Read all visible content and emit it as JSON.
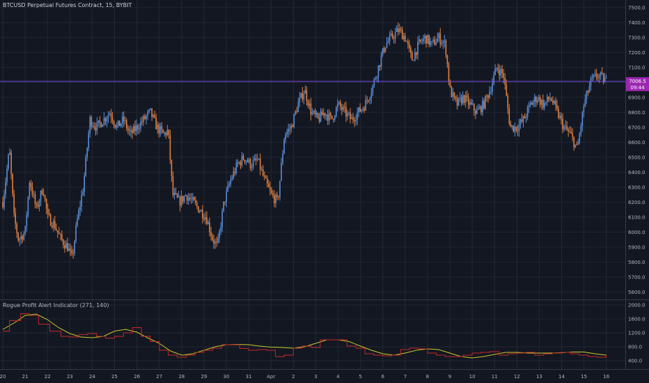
{
  "chart_data": [
    {
      "type": "candlestick",
      "title": "BTCUSD Perpetual Futures Contract, 15, BYBIT",
      "ylim": [
        5550,
        7550
      ],
      "y_ticks": [
        5600,
        5700,
        5800,
        5900,
        6000,
        6100,
        6200,
        6300,
        6400,
        6500,
        6600,
        6700,
        6800,
        6900,
        7000,
        7100,
        7200,
        7300,
        7400,
        7500
      ],
      "price_line": {
        "value": 7006.5,
        "label": "7006.5",
        "countdown": "09:44"
      },
      "x_ticks": [
        "20",
        "21",
        "22",
        "23",
        "24",
        "25",
        "26",
        "27",
        "28",
        "29",
        "30",
        "31",
        "Apr",
        "2",
        "3",
        "4",
        "5",
        "6",
        "7",
        "8",
        "9",
        "10",
        "11",
        "12",
        "13",
        "14",
        "15",
        "16"
      ],
      "x_tick_index": [
        0,
        1,
        2,
        3,
        4,
        5,
        6,
        7,
        8,
        9,
        10,
        11,
        12,
        13,
        14,
        15,
        16,
        17,
        18,
        19,
        20,
        21,
        22,
        23,
        24,
        25,
        26,
        27
      ],
      "closes": [
        [
          0,
          6200
        ],
        [
          0.3,
          6550
        ],
        [
          0.5,
          6100
        ],
        [
          0.7,
          5950
        ],
        [
          1.0,
          6000
        ],
        [
          1.2,
          6350
        ],
        [
          1.5,
          6150
        ],
        [
          1.8,
          6300
        ],
        [
          2.0,
          6100
        ],
        [
          2.3,
          6050
        ],
        [
          2.6,
          5950
        ],
        [
          2.9,
          5900
        ],
        [
          3.1,
          5820
        ],
        [
          3.3,
          6050
        ],
        [
          3.6,
          6300
        ],
        [
          3.9,
          6750
        ],
        [
          4.2,
          6700
        ],
        [
          4.5,
          6750
        ],
        [
          4.8,
          6800
        ],
        [
          5.1,
          6700
        ],
        [
          5.4,
          6750
        ],
        [
          5.7,
          6650
        ],
        [
          6.0,
          6700
        ],
        [
          6.3,
          6750
        ],
        [
          6.6,
          6800
        ],
        [
          6.9,
          6700
        ],
        [
          7.2,
          6650
        ],
        [
          7.4,
          6680
        ],
        [
          7.6,
          6250
        ],
        [
          7.9,
          6200
        ],
        [
          8.2,
          6250
        ],
        [
          8.5,
          6200
        ],
        [
          8.8,
          6150
        ],
        [
          9.1,
          6100
        ],
        [
          9.4,
          5950
        ],
        [
          9.6,
          5900
        ],
        [
          9.9,
          6200
        ],
        [
          10.2,
          6350
        ],
        [
          10.5,
          6450
        ],
        [
          10.8,
          6500
        ],
        [
          11.1,
          6450
        ],
        [
          11.4,
          6480
        ],
        [
          11.7,
          6350
        ],
        [
          12.0,
          6250
        ],
        [
          12.3,
          6200
        ],
        [
          12.6,
          6650
        ],
        [
          12.9,
          6700
        ],
        [
          13.2,
          6850
        ],
        [
          13.5,
          6950
        ],
        [
          13.8,
          6800
        ],
        [
          14.1,
          6750
        ],
        [
          14.4,
          6800
        ],
        [
          14.7,
          6750
        ],
        [
          15.0,
          6850
        ],
        [
          15.3,
          6800
        ],
        [
          15.6,
          6750
        ],
        [
          15.9,
          6800
        ],
        [
          16.2,
          6850
        ],
        [
          16.5,
          6950
        ],
        [
          16.8,
          7100
        ],
        [
          17.1,
          7250
        ],
        [
          17.4,
          7300
        ],
        [
          17.7,
          7350
        ],
        [
          18.0,
          7300
        ],
        [
          18.3,
          7150
        ],
        [
          18.6,
          7250
        ],
        [
          18.9,
          7300
        ],
        [
          19.2,
          7250
        ],
        [
          19.5,
          7300
        ],
        [
          19.8,
          7250
        ],
        [
          20.0,
          6950
        ],
        [
          20.3,
          6850
        ],
        [
          20.6,
          6900
        ],
        [
          20.9,
          6850
        ],
        [
          21.2,
          6800
        ],
        [
          21.5,
          6850
        ],
        [
          21.8,
          6950
        ],
        [
          22.1,
          7100
        ],
        [
          22.4,
          7050
        ],
        [
          22.7,
          6700
        ],
        [
          23.0,
          6700
        ],
        [
          23.3,
          6750
        ],
        [
          23.6,
          6850
        ],
        [
          23.9,
          6900
        ],
        [
          24.2,
          6850
        ],
        [
          24.5,
          6900
        ],
        [
          24.8,
          6800
        ],
        [
          25.1,
          6700
        ],
        [
          25.4,
          6650
        ],
        [
          25.7,
          6550
        ],
        [
          26.0,
          6850
        ],
        [
          26.3,
          7000
        ],
        [
          26.6,
          7050
        ],
        [
          27.0,
          7006
        ]
      ]
    },
    {
      "type": "line",
      "title": "Rogue Profit Alert Indicator (271, 140)",
      "ylim": [
        200,
        2100
      ],
      "y_ticks": [
        400,
        800,
        1200,
        1600,
        2000
      ],
      "y_tick_labels": [
        "400.0",
        "800.0",
        "1200.0",
        "1600.0",
        "2000.0"
      ],
      "series": [
        {
          "color": "#c9c92a",
          "values": [
            [
              0,
              1300
            ],
            [
              0.5,
              1480
            ],
            [
              1.0,
              1700
            ],
            [
              1.5,
              1740
            ],
            [
              2.0,
              1580
            ],
            [
              2.5,
              1350
            ],
            [
              3.0,
              1180
            ],
            [
              3.5,
              1080
            ],
            [
              4.0,
              1060
            ],
            [
              4.5,
              1100
            ],
            [
              5.0,
              1250
            ],
            [
              5.5,
              1300
            ],
            [
              6.0,
              1220
            ],
            [
              6.5,
              1050
            ],
            [
              7.0,
              900
            ],
            [
              7.5,
              680
            ],
            [
              8.0,
              560
            ],
            [
              8.5,
              600
            ],
            [
              9.0,
              700
            ],
            [
              9.5,
              800
            ],
            [
              10.0,
              860
            ],
            [
              10.5,
              870
            ],
            [
              11.0,
              860
            ],
            [
              11.5,
              820
            ],
            [
              12.0,
              790
            ],
            [
              12.5,
              780
            ],
            [
              13.0,
              760
            ],
            [
              13.5,
              800
            ],
            [
              14.0,
              900
            ],
            [
              14.5,
              1000
            ],
            [
              15.0,
              1000
            ],
            [
              15.5,
              950
            ],
            [
              16.0,
              820
            ],
            [
              16.5,
              700
            ],
            [
              17.0,
              600
            ],
            [
              17.5,
              560
            ],
            [
              18.0,
              620
            ],
            [
              18.5,
              700
            ],
            [
              19.0,
              740
            ],
            [
              19.5,
              720
            ],
            [
              20.0,
              620
            ],
            [
              20.5,
              520
            ],
            [
              21.0,
              480
            ],
            [
              21.5,
              520
            ],
            [
              22.0,
              580
            ],
            [
              22.5,
              640
            ],
            [
              23.0,
              640
            ],
            [
              23.5,
              620
            ],
            [
              24.0,
              620
            ],
            [
              24.5,
              620
            ],
            [
              25.0,
              630
            ],
            [
              25.5,
              650
            ],
            [
              26.0,
              650
            ],
            [
              26.5,
              600
            ],
            [
              27.0,
              560
            ]
          ]
        },
        {
          "color": "#c62828",
          "values": [
            [
              0,
              1250
            ],
            [
              0.3,
              1550
            ],
            [
              0.8,
              1750
            ],
            [
              1.2,
              1700
            ],
            [
              1.6,
              1450
            ],
            [
              2.1,
              1250
            ],
            [
              2.6,
              1100
            ],
            [
              3.0,
              1080
            ],
            [
              3.4,
              1150
            ],
            [
              3.8,
              1180
            ],
            [
              4.2,
              1100
            ],
            [
              4.6,
              1050
            ],
            [
              5.0,
              1100
            ],
            [
              5.4,
              1200
            ],
            [
              5.8,
              1350
            ],
            [
              6.2,
              1100
            ],
            [
              6.6,
              950
            ],
            [
              7.0,
              700
            ],
            [
              7.4,
              560
            ],
            [
              7.8,
              500
            ],
            [
              8.2,
              560
            ],
            [
              8.6,
              640
            ],
            [
              9.0,
              700
            ],
            [
              9.4,
              760
            ],
            [
              9.8,
              860
            ],
            [
              10.2,
              860
            ],
            [
              10.6,
              750
            ],
            [
              11.0,
              700
            ],
            [
              11.4,
              720
            ],
            [
              11.8,
              700
            ],
            [
              12.2,
              520
            ],
            [
              12.6,
              560
            ],
            [
              13.0,
              760
            ],
            [
              13.4,
              820
            ],
            [
              13.8,
              780
            ],
            [
              14.2,
              1000
            ],
            [
              14.6,
              1000
            ],
            [
              15.0,
              1000
            ],
            [
              15.4,
              820
            ],
            [
              15.8,
              760
            ],
            [
              16.2,
              600
            ],
            [
              16.6,
              560
            ],
            [
              17.0,
              540
            ],
            [
              17.4,
              560
            ],
            [
              17.8,
              720
            ],
            [
              18.2,
              760
            ],
            [
              18.6,
              740
            ],
            [
              19.0,
              620
            ],
            [
              19.4,
              560
            ],
            [
              19.8,
              520
            ],
            [
              20.2,
              520
            ],
            [
              20.6,
              560
            ],
            [
              21.0,
              620
            ],
            [
              21.4,
              640
            ],
            [
              21.8,
              660
            ],
            [
              22.2,
              560
            ],
            [
              22.6,
              600
            ],
            [
              23.0,
              620
            ],
            [
              23.4,
              640
            ],
            [
              23.8,
              560
            ],
            [
              24.2,
              600
            ],
            [
              24.6,
              620
            ],
            [
              25.0,
              640
            ],
            [
              25.4,
              600
            ],
            [
              25.8,
              560
            ],
            [
              26.2,
              520
            ],
            [
              26.6,
              500
            ],
            [
              27.0,
              560
            ]
          ]
        }
      ]
    }
  ],
  "colors": {
    "background": "#131722",
    "grid": "#232733",
    "up": "#5b8fd6",
    "down": "#e0803e",
    "price_line": "#7b4ae0",
    "price_label": "#9c27b0"
  }
}
